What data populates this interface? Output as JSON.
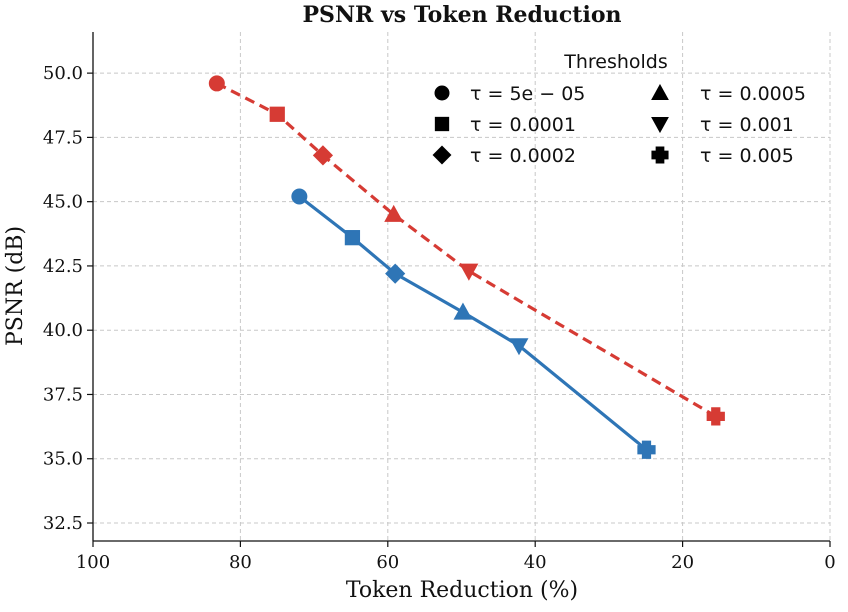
{
  "chart_data": {
    "type": "line",
    "title": "PSNR vs Token Reduction",
    "xlabel": "Token Reduction (%)",
    "ylabel": "PSNR (dB)",
    "xlim": [
      100,
      0
    ],
    "ylim": [
      31.8,
      51.6
    ],
    "xticks": [
      100,
      80,
      60,
      40,
      20,
      0
    ],
    "yticks": [
      32.5,
      35.0,
      37.5,
      40.0,
      42.5,
      45.0,
      47.5,
      50.0
    ],
    "ytick_labels": [
      "32.5",
      "35.0",
      "37.5",
      "40.0",
      "42.5",
      "45.0",
      "47.5",
      "50.0"
    ],
    "grid": true,
    "legend": {
      "title": "Thresholds",
      "placement": "top-right",
      "entries": [
        {
          "marker": "circle",
          "label": "τ = 5e − 05"
        },
        {
          "marker": "triangle-up",
          "label": "τ = 0.0005"
        },
        {
          "marker": "square",
          "label": "τ = 0.0001"
        },
        {
          "marker": "triangle-down",
          "label": "τ = 0.001"
        },
        {
          "marker": "diamond",
          "label": "τ = 0.0002"
        },
        {
          "marker": "plus",
          "label": "τ = 0.005"
        }
      ]
    },
    "series": [
      {
        "name": "blue",
        "color": "#2e75b6",
        "line_style": "solid",
        "markers": [
          "circle",
          "square",
          "diamond",
          "triangle-up",
          "triangle-down",
          "plus"
        ],
        "x": [
          72.0,
          64.8,
          59.0,
          49.8,
          42.2,
          24.9
        ],
        "y": [
          45.2,
          43.6,
          42.2,
          40.7,
          39.4,
          35.35
        ]
      },
      {
        "name": "red",
        "color": "#d63b34",
        "line_style": "dashed",
        "markers": [
          "circle",
          "square",
          "diamond",
          "triangle-up",
          "triangle-down",
          "plus"
        ],
        "x": [
          83.2,
          75.0,
          68.8,
          59.2,
          49.0,
          15.5
        ],
        "y": [
          49.6,
          48.4,
          46.8,
          44.5,
          42.3,
          36.65
        ]
      }
    ]
  }
}
